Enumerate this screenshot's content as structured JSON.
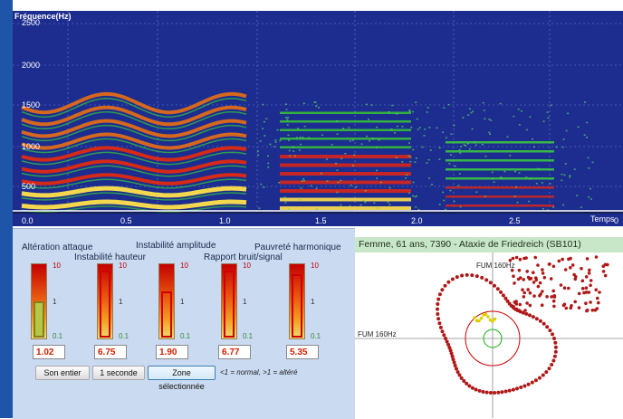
{
  "spectrogram": {
    "title": "Fréquence(Hz)",
    "y_ticks": [
      "2500",
      "2000",
      "1500",
      "1000",
      "500"
    ],
    "x_ticks": [
      "0.0",
      "0.5",
      "1.0",
      "1.5",
      "2.0",
      "2.5"
    ],
    "x_axis_end_label": "Temps",
    "x_axis_end_suffix": "0"
  },
  "params": {
    "labels": {
      "attaque": "Altération attaque",
      "hauteur": "Instabilité hauteur",
      "amplitude": "Instabilité amplitude",
      "bruit": "Rapport bruit/signal",
      "harmonique": "Pauvreté harmonique"
    },
    "tick_labels": [
      "10",
      "1",
      "0.1"
    ],
    "values": [
      "1.02",
      "6.75",
      "1.90",
      "6.77",
      "5.35"
    ],
    "gauge_levels": [
      0.5,
      0.91,
      0.64,
      0.92,
      0.86
    ]
  },
  "buttons": {
    "whole": "Son entier",
    "second": "1 seconde",
    "zone": "Zone sélectionnée"
  },
  "legend_note": "<1 = normal, >1 = altéré",
  "patient": {
    "header": "Femme, 61 ans, 7390 -  Ataxie de Friedreich (SB101)",
    "fum_top": "FUM 160Hz",
    "fum_left": "FUM 160Hz"
  },
  "colors": {
    "frame": "#1f55a8",
    "spectro_bg": "#1c2d8f",
    "panel": "#c9daf1",
    "header_green": "#c8e6c8",
    "plot_points": "#b01818"
  }
}
